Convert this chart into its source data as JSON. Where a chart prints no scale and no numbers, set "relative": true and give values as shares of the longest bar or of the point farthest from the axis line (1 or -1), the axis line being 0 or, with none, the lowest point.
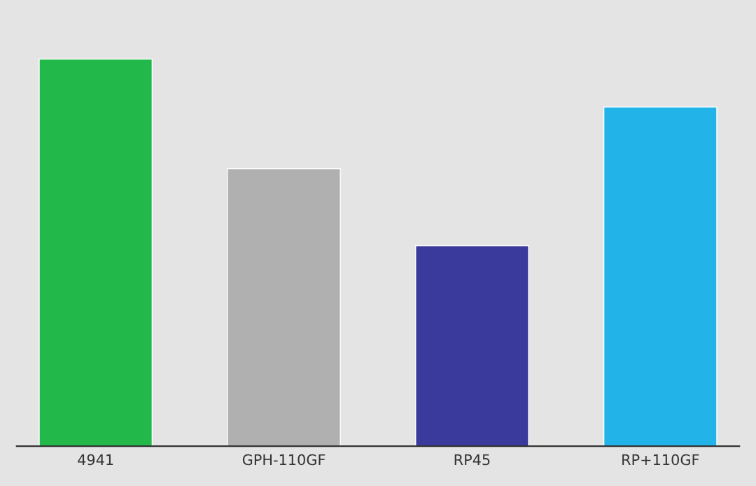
{
  "chart_data": {
    "type": "bar",
    "relative": true,
    "categories": [
      "4941",
      "GPH-110GF",
      "RP45",
      "RP+110GF"
    ],
    "values": [
      1,
      0.717,
      0.518,
      0.876
    ],
    "colors": [
      "#22b84a",
      "#b0b0b0",
      "#3a3a9c",
      "#22b4e8"
    ],
    "grid": false,
    "legend": false
  }
}
